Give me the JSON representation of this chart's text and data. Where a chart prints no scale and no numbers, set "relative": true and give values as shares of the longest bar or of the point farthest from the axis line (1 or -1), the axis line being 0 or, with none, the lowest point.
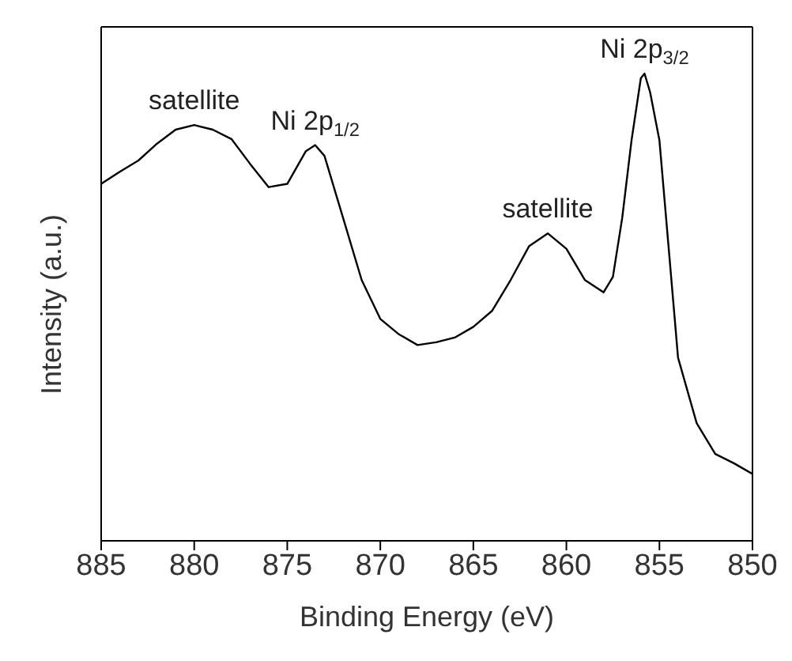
{
  "chart_data": {
    "type": "line",
    "relative": true,
    "xlabel": "Binding Energy (eV)",
    "ylabel": "Intensity (a.u.)",
    "xlim": [
      885,
      850
    ],
    "xticks": [
      885,
      880,
      875,
      870,
      865,
      860,
      855,
      850
    ],
    "marker": "none",
    "line_style": "solid",
    "x": [
      885,
      884,
      883,
      882,
      881,
      880,
      879,
      878,
      877,
      876,
      875,
      874,
      873.5,
      873,
      872,
      871,
      870,
      869,
      868,
      867,
      866,
      865,
      864,
      863,
      862,
      861,
      860,
      859,
      858,
      857.5,
      857,
      856.5,
      856,
      855.8,
      855.5,
      855,
      854.5,
      854,
      853,
      852,
      851,
      850
    ],
    "series": [
      {
        "color": "#000000",
        "values": [
          0.764,
          0.79,
          0.814,
          0.85,
          0.88,
          0.89,
          0.88,
          0.86,
          0.807,
          0.757,
          0.764,
          0.834,
          0.847,
          0.824,
          0.691,
          0.558,
          0.475,
          0.442,
          0.419,
          0.425,
          0.435,
          0.458,
          0.492,
          0.558,
          0.631,
          0.658,
          0.625,
          0.558,
          0.532,
          0.565,
          0.691,
          0.857,
          0.99,
          1,
          0.96,
          0.857,
          0.625,
          0.392,
          0.252,
          0.186,
          0.166,
          0.143
        ]
      }
    ],
    "annotations": [
      {
        "text": "satellite",
        "x": 880,
        "y": 0.89
      },
      {
        "text": "Ni 2p$_{1/2}$",
        "x": 873.5,
        "y": 0.847
      },
      {
        "text": "satellite",
        "x": 861,
        "y": 0.658
      },
      {
        "text": "Ni 2p$_{3/2}$",
        "x": 855.8,
        "y": 1
      }
    ]
  }
}
